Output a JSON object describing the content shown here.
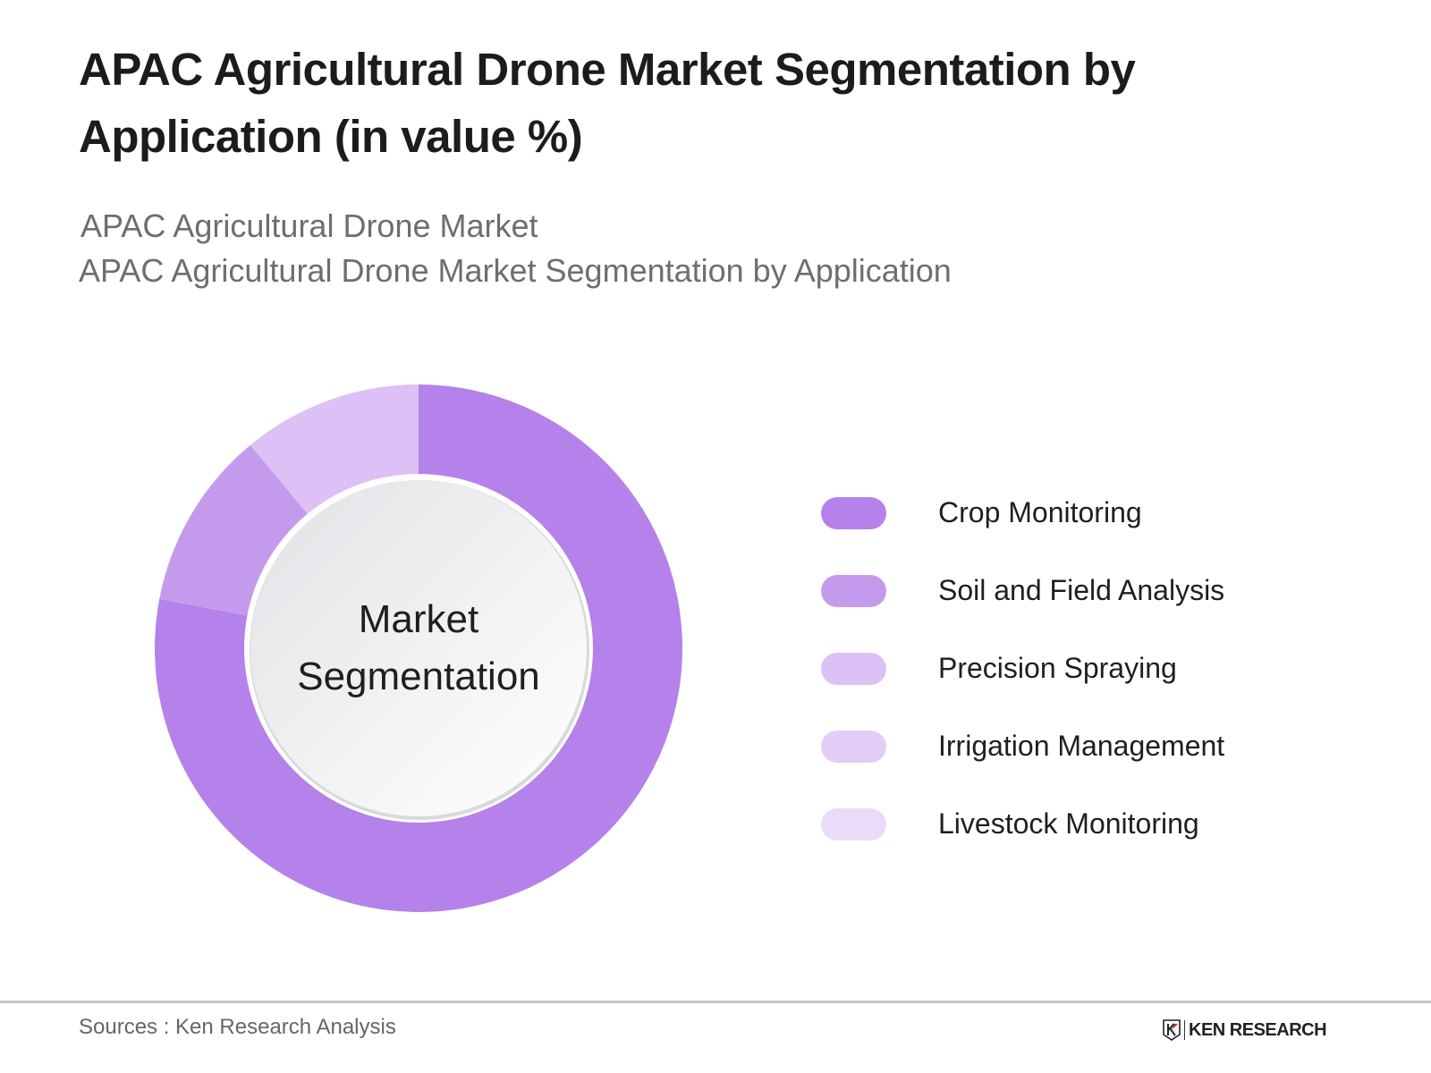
{
  "header": {
    "title": "APAC Agricultural Drone Market Segmentation by Application (in value %)",
    "subtitle_line1": "APAC Agricultural Drone Market",
    "subtitle_line2": "APAC Agricultural Drone Market Segmentation by Application"
  },
  "center_label": {
    "line1": "Market",
    "line2": "Segmentation"
  },
  "legend": [
    {
      "label": "Crop Monitoring",
      "color": "#b482ea"
    },
    {
      "label": "Soil and Field Analysis",
      "color": "#c49bec"
    },
    {
      "label": "Precision Spraying",
      "color": "#dcc0f6"
    },
    {
      "label": "Irrigation Management",
      "color": "#e2cdf6"
    },
    {
      "label": "Livestock Monitoring",
      "color": "#eadcf9"
    }
  ],
  "footer": {
    "source": "Sources : Ken Research Analysis",
    "logo_text": "KEN RESEARCH"
  },
  "chart_data": {
    "type": "pie",
    "subtype": "donut",
    "title": "APAC Agricultural Drone Market Segmentation by Application (in value %)",
    "subtitle": "APAC Agricultural Drone Market Segmentation by Application",
    "center_text": "Market Segmentation",
    "categories": [
      "Crop Monitoring",
      "Soil and Field Analysis",
      "Precision Spraying",
      "Irrigation Management",
      "Livestock Monitoring"
    ],
    "values": [
      78,
      11,
      11,
      0,
      0
    ],
    "colors": [
      "#b482ea",
      "#c49bec",
      "#dcc0f6",
      "#e2cdf6",
      "#eadcf9"
    ],
    "start_angle": "12 o'clock, clockwise",
    "legend_position": "right",
    "data_labels": false
  }
}
